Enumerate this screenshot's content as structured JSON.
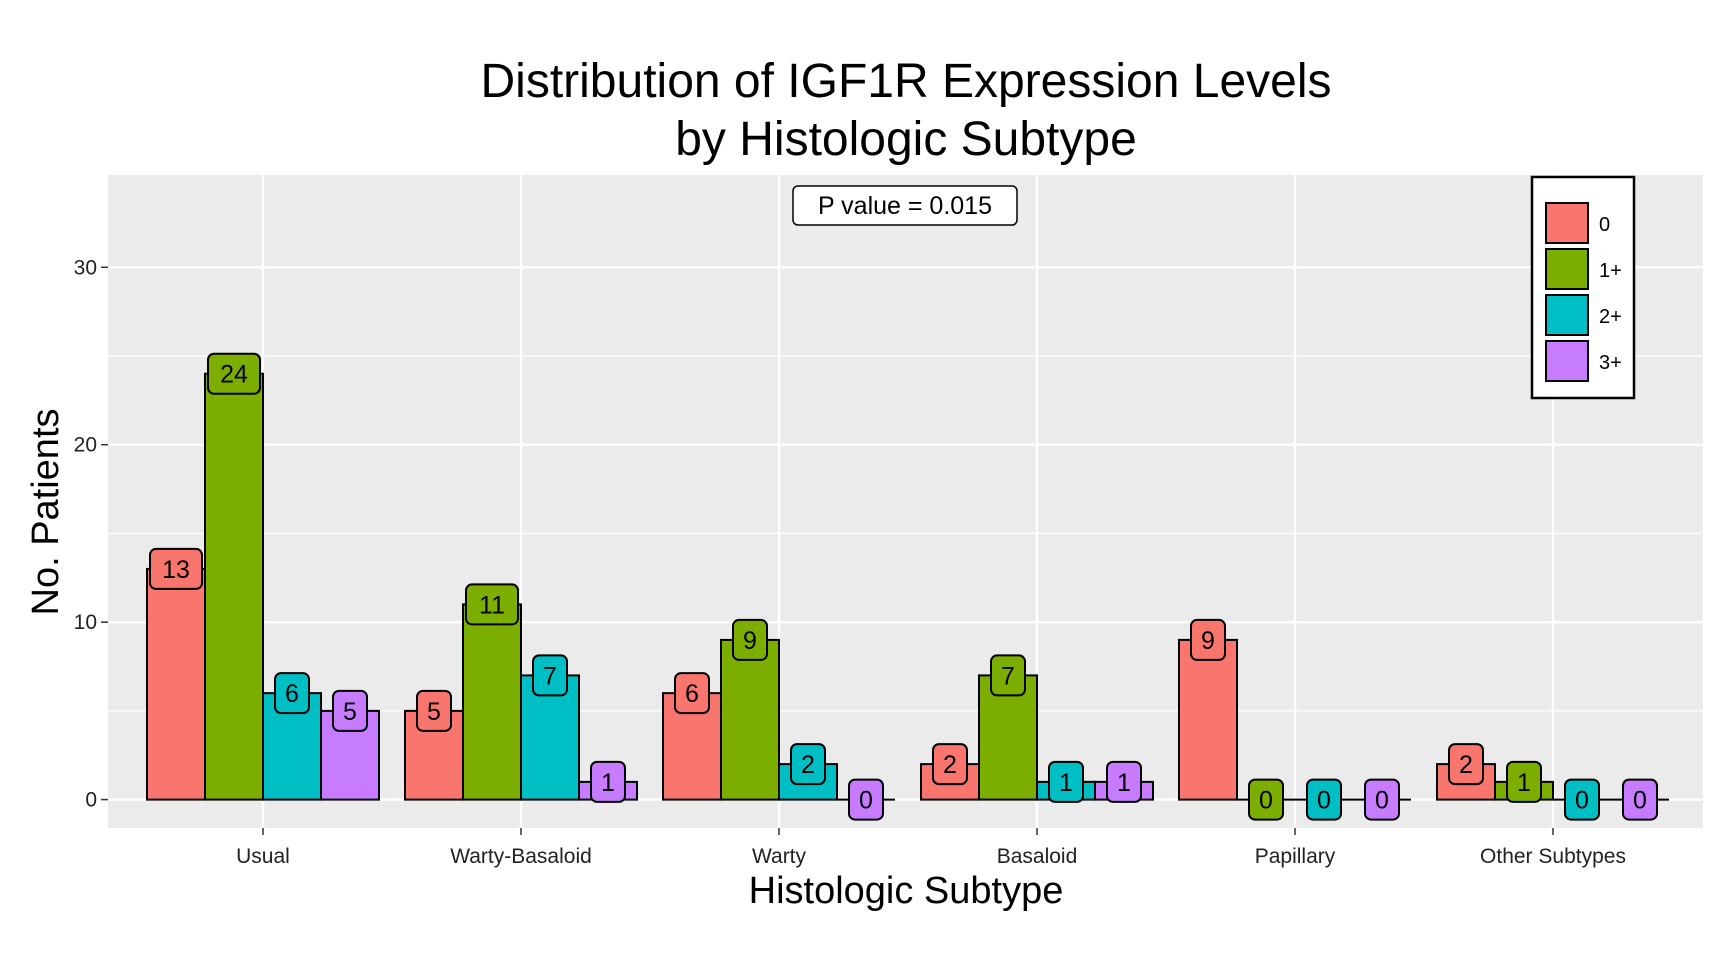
{
  "chart_data": {
    "type": "bar",
    "title_lines": [
      "Distribution of IGF1R Expression Levels",
      "by Histologic Subtype"
    ],
    "xlabel": "Histologic Subtype",
    "ylabel": "No. Patients",
    "categories": [
      "Usual",
      "Warty-Basaloid",
      "Warty",
      "Basaloid",
      "Papillary",
      "Other Subtypes"
    ],
    "series": [
      {
        "name": "0",
        "color": "#F8766D",
        "values": [
          13,
          5,
          6,
          2,
          9,
          2
        ]
      },
      {
        "name": "1+",
        "color": "#7CAE00",
        "values": [
          24,
          11,
          9,
          7,
          0,
          1
        ]
      },
      {
        "name": "2+",
        "color": "#00BFC4",
        "values": [
          6,
          7,
          2,
          1,
          0,
          0
        ]
      },
      {
        "name": "3+",
        "color": "#C77CFF",
        "values": [
          5,
          1,
          0,
          1,
          0,
          0
        ]
      }
    ],
    "ylim": [
      -1.6,
      35.2
    ],
    "yticks": [
      0,
      10,
      20,
      30
    ],
    "grid": true,
    "legend_position": "top-right",
    "annotation": "P value = 0.015",
    "panel_background": "#EBEBEB"
  }
}
